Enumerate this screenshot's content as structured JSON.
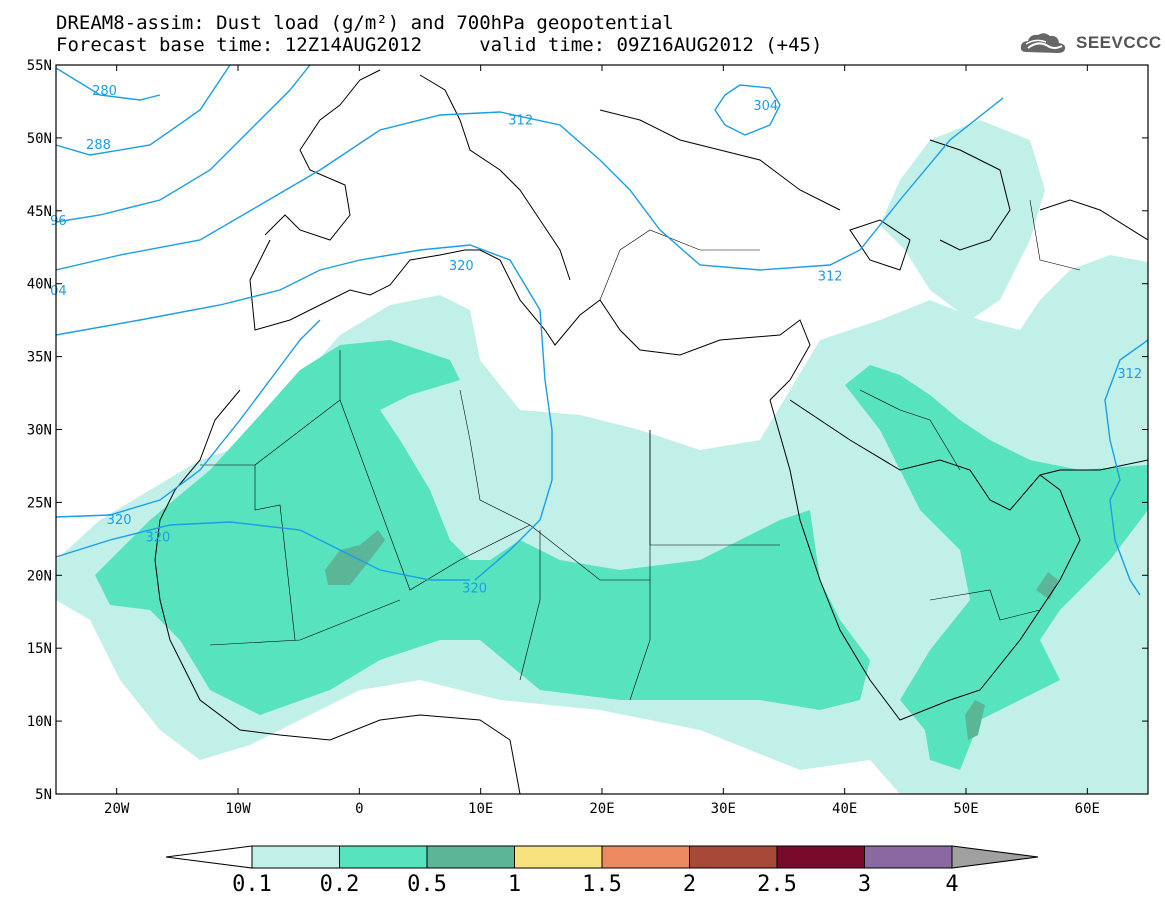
{
  "title": {
    "line1": "DREAM8-assim: Dust load (g/m²) and 700hPa geopotential",
    "line2": "Forecast base time: 12Z14AUG2012     valid time: 09Z16AUG2012 (+45)"
  },
  "logo": {
    "text": "SEEVCCC",
    "icon": "cloud-icon"
  },
  "map": {
    "lon_range": [
      -25,
      65
    ],
    "lat_range": [
      5,
      55
    ],
    "lon_ticks": [
      {
        "value": -20,
        "label": "20W"
      },
      {
        "value": -10,
        "label": "10W"
      },
      {
        "value": 0,
        "label": "0"
      },
      {
        "value": 10,
        "label": "10E"
      },
      {
        "value": 20,
        "label": "20E"
      },
      {
        "value": 30,
        "label": "30E"
      },
      {
        "value": 40,
        "label": "40E"
      },
      {
        "value": 50,
        "label": "50E"
      },
      {
        "value": 60,
        "label": "60E"
      }
    ],
    "lat_ticks": [
      {
        "value": 5,
        "label": "5N"
      },
      {
        "value": 10,
        "label": "10N"
      },
      {
        "value": 15,
        "label": "15N"
      },
      {
        "value": 20,
        "label": "20N"
      },
      {
        "value": 25,
        "label": "25N"
      },
      {
        "value": 30,
        "label": "30N"
      },
      {
        "value": 35,
        "label": "35N"
      },
      {
        "value": 40,
        "label": "40N"
      },
      {
        "value": 45,
        "label": "45N"
      },
      {
        "value": 50,
        "label": "50N"
      },
      {
        "value": 55,
        "label": "55N"
      }
    ],
    "contour_color": "#1a9ee8",
    "contour_labels": [
      {
        "text": "280",
        "lon": -21,
        "lat": 53.2
      },
      {
        "text": "288",
        "lon": -21.5,
        "lat": 49.5
      },
      {
        "text": "96",
        "lon": -24.8,
        "lat": 44.3
      },
      {
        "text": "04",
        "lon": -24.8,
        "lat": 39.5
      },
      {
        "text": "304",
        "lon": 33.5,
        "lat": 52.2
      },
      {
        "text": "312",
        "lon": 13.3,
        "lat": 51.2
      },
      {
        "text": "312",
        "lon": 38.8,
        "lat": 40.5
      },
      {
        "text": "312",
        "lon": 63.5,
        "lat": 33.8
      },
      {
        "text": "320",
        "lon": 8.4,
        "lat": 41.2
      },
      {
        "text": "320",
        "lon": -19.8,
        "lat": 23.8
      },
      {
        "text": "320",
        "lon": -16.6,
        "lat": 22.6
      },
      {
        "text": "320",
        "lon": 9.5,
        "lat": 19.1
      }
    ]
  },
  "colorbar": {
    "labels": [
      "0.1",
      "0.2",
      "0.5",
      "1",
      "1.5",
      "2",
      "2.5",
      "3",
      "4"
    ],
    "colors": [
      "#c1f0e9",
      "#57e3bd",
      "#5ab697",
      "#f7e27e",
      "#ec8b62",
      "#a84838",
      "#7a0a2c",
      "#8a68a0"
    ],
    "under_color": "#ffffff",
    "over_color": "#a0a0a0"
  }
}
